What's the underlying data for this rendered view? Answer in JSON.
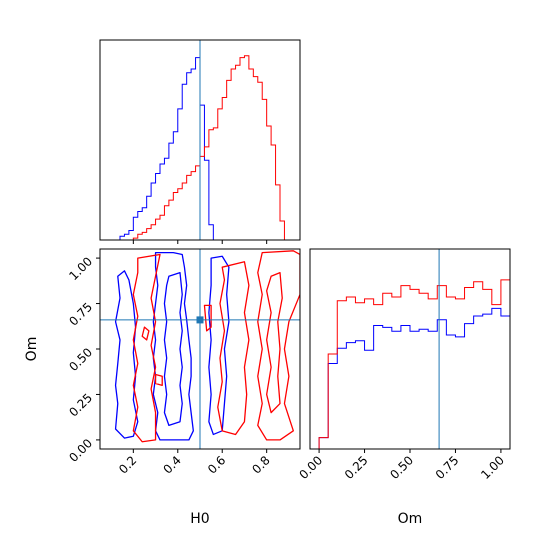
{
  "chart_data": [
    {
      "id": "h0_hist",
      "type": "histogram",
      "panel": "top-left",
      "xlim": [
        0.05,
        0.95
      ],
      "ylim": [
        0,
        1
      ],
      "bin_start": 0.1,
      "bin_width": 0.02,
      "truth_x": 0.5,
      "show_x_ticklabels": false,
      "show_y_ticks": false,
      "series": [
        {
          "color": "#0000ff",
          "values": [
            0,
            0,
            0.02,
            0.03,
            0.05,
            0.12,
            0.15,
            0.17,
            0.23,
            0.3,
            0.35,
            0.4,
            0.43,
            0.51,
            0.57,
            0.69,
            0.82,
            0.88,
            0.9,
            0.96,
            0.71,
            0.42,
            0.08,
            0,
            0,
            0,
            0,
            0,
            0,
            0,
            0,
            0,
            0,
            0,
            0,
            0,
            0,
            0,
            0,
            0,
            0,
            0,
            0,
            0,
            0,
            0
          ]
        },
        {
          "color": "#ff0000",
          "values": [
            0,
            0,
            0,
            0,
            0,
            0.01,
            0.03,
            0.04,
            0.06,
            0.08,
            0.11,
            0.13,
            0.18,
            0.21,
            0.25,
            0.27,
            0.3,
            0.34,
            0.36,
            0.39,
            0.44,
            0.49,
            0.58,
            0.59,
            0.69,
            0.75,
            0.84,
            0.9,
            0.92,
            0.96,
            0.97,
            0.9,
            0.86,
            0.83,
            0.74,
            0.6,
            0.5,
            0.29,
            0.1,
            0,
            0,
            0,
            0,
            0,
            0,
            0
          ]
        }
      ]
    },
    {
      "id": "h0_om_contour",
      "type": "contour",
      "panel": "bottom-left",
      "xlabel": "H0",
      "ylabel": "Om",
      "xlim": [
        0.05,
        0.95
      ],
      "ylim": [
        -0.05,
        1.05
      ],
      "xticks": [
        "0.2",
        "0.4",
        "0.6",
        "0.8"
      ],
      "yticks": [
        "0.00",
        "0.25",
        "0.50",
        "0.75",
        "1.00"
      ],
      "xtick_values": [
        0.2,
        0.4,
        0.6,
        0.8
      ],
      "ytick_values": [
        0,
        0.25,
        0.5,
        0.75,
        1.0
      ],
      "truth": [
        0.5,
        0.66
      ],
      "contours": [
        {
          "color": "#0000ff",
          "points": [
            [
              0.3,
              1.03
            ],
            [
              0.38,
              1.03
            ],
            [
              0.42,
              1.02
            ],
            [
              0.43,
              0.95
            ],
            [
              0.44,
              0.85
            ],
            [
              0.43,
              0.75
            ],
            [
              0.44,
              0.66
            ],
            [
              0.45,
              0.55
            ],
            [
              0.46,
              0.45
            ],
            [
              0.46,
              0.35
            ],
            [
              0.45,
              0.25
            ],
            [
              0.46,
              0.15
            ],
            [
              0.47,
              0.05
            ],
            [
              0.45,
              0.0
            ],
            [
              0.4,
              0.0
            ],
            [
              0.32,
              0.0
            ],
            [
              0.3,
              0.05
            ],
            [
              0.31,
              0.15
            ],
            [
              0.29,
              0.25
            ],
            [
              0.3,
              0.35
            ],
            [
              0.29,
              0.45
            ],
            [
              0.3,
              0.55
            ],
            [
              0.29,
              0.65
            ],
            [
              0.3,
              0.75
            ],
            [
              0.31,
              0.85
            ],
            [
              0.3,
              0.95
            ]
          ]
        },
        {
          "color": "#0000ff",
          "points": [
            [
              0.36,
              0.9
            ],
            [
              0.41,
              0.92
            ],
            [
              0.42,
              0.8
            ],
            [
              0.41,
              0.7
            ],
            [
              0.42,
              0.6
            ],
            [
              0.41,
              0.5
            ],
            [
              0.42,
              0.4
            ],
            [
              0.41,
              0.3
            ],
            [
              0.42,
              0.2
            ],
            [
              0.41,
              0.1
            ],
            [
              0.36,
              0.08
            ],
            [
              0.34,
              0.15
            ],
            [
              0.35,
              0.25
            ],
            [
              0.34,
              0.35
            ],
            [
              0.35,
              0.45
            ],
            [
              0.34,
              0.55
            ],
            [
              0.35,
              0.65
            ],
            [
              0.34,
              0.75
            ],
            [
              0.35,
              0.85
            ]
          ]
        },
        {
          "color": "#0000ff",
          "points": [
            [
              0.13,
              0.9
            ],
            [
              0.14,
              0.78
            ],
            [
              0.12,
              0.65
            ],
            [
              0.14,
              0.55
            ],
            [
              0.13,
              0.42
            ],
            [
              0.12,
              0.3
            ],
            [
              0.13,
              0.2
            ],
            [
              0.12,
              0.06
            ],
            [
              0.16,
              0.01
            ],
            [
              0.2,
              0.02
            ],
            [
              0.22,
              0.1
            ],
            [
              0.2,
              0.22
            ],
            [
              0.21,
              0.35
            ],
            [
              0.2,
              0.48
            ],
            [
              0.21,
              0.62
            ],
            [
              0.2,
              0.75
            ],
            [
              0.18,
              0.88
            ],
            [
              0.16,
              0.93
            ]
          ]
        },
        {
          "color": "#0000ff",
          "points": [
            [
              0.55,
              1.0
            ],
            [
              0.6,
              1.01
            ],
            [
              0.63,
              0.95
            ],
            [
              0.62,
              0.8
            ],
            [
              0.63,
              0.65
            ],
            [
              0.61,
              0.5
            ],
            [
              0.62,
              0.35
            ],
            [
              0.61,
              0.2
            ],
            [
              0.6,
              0.05
            ],
            [
              0.56,
              0.03
            ],
            [
              0.54,
              0.1
            ],
            [
              0.55,
              0.25
            ],
            [
              0.54,
              0.4
            ],
            [
              0.55,
              0.55
            ],
            [
              0.54,
              0.7
            ],
            [
              0.55,
              0.85
            ]
          ]
        },
        {
          "color": "#ff0000",
          "points": [
            [
              0.6,
              0.95
            ],
            [
              0.7,
              0.98
            ],
            [
              0.72,
              0.85
            ],
            [
              0.7,
              0.7
            ],
            [
              0.72,
              0.55
            ],
            [
              0.7,
              0.4
            ],
            [
              0.71,
              0.25
            ],
            [
              0.7,
              0.1
            ],
            [
              0.66,
              0.03
            ],
            [
              0.6,
              0.05
            ],
            [
              0.58,
              0.18
            ],
            [
              0.6,
              0.32
            ],
            [
              0.59,
              0.45
            ],
            [
              0.61,
              0.6
            ],
            [
              0.59,
              0.75
            ],
            [
              0.61,
              0.88
            ]
          ]
        },
        {
          "color": "#ff0000",
          "points": [
            [
              0.78,
              1.03
            ],
            [
              0.92,
              1.04
            ],
            [
              0.95,
              1.02
            ],
            [
              0.95,
              0.8
            ],
            [
              0.9,
              0.65
            ],
            [
              0.88,
              0.5
            ],
            [
              0.9,
              0.35
            ],
            [
              0.88,
              0.2
            ],
            [
              0.92,
              0.05
            ],
            [
              0.86,
              0.0
            ],
            [
              0.8,
              0.0
            ],
            [
              0.76,
              0.08
            ],
            [
              0.78,
              0.2
            ],
            [
              0.76,
              0.35
            ],
            [
              0.78,
              0.5
            ],
            [
              0.76,
              0.65
            ],
            [
              0.78,
              0.8
            ],
            [
              0.76,
              0.92
            ]
          ]
        },
        {
          "color": "#ff0000",
          "points": [
            [
              0.82,
              0.9
            ],
            [
              0.86,
              0.92
            ],
            [
              0.87,
              0.78
            ],
            [
              0.85,
              0.65
            ],
            [
              0.86,
              0.5
            ],
            [
              0.85,
              0.35
            ],
            [
              0.86,
              0.2
            ],
            [
              0.82,
              0.15
            ],
            [
              0.8,
              0.25
            ],
            [
              0.82,
              0.4
            ],
            [
              0.8,
              0.55
            ],
            [
              0.82,
              0.7
            ],
            [
              0.8,
              0.82
            ]
          ]
        },
        {
          "color": "#ff0000",
          "points": [
            [
              0.22,
              1.0
            ],
            [
              0.32,
              1.02
            ],
            [
              0.3,
              0.9
            ],
            [
              0.28,
              0.78
            ],
            [
              0.3,
              0.65
            ],
            [
              0.28,
              0.52
            ],
            [
              0.3,
              0.4
            ],
            [
              0.28,
              0.28
            ],
            [
              0.3,
              0.15
            ],
            [
              0.3,
              0.0
            ],
            [
              0.24,
              -0.01
            ],
            [
              0.2,
              0.05
            ],
            [
              0.22,
              0.18
            ],
            [
              0.2,
              0.3
            ],
            [
              0.22,
              0.42
            ],
            [
              0.2,
              0.55
            ],
            [
              0.22,
              0.68
            ],
            [
              0.2,
              0.8
            ],
            [
              0.22,
              0.92
            ]
          ]
        },
        {
          "color": "#ff0000",
          "points": [
            [
              0.25,
              0.62
            ],
            [
              0.27,
              0.6
            ],
            [
              0.26,
              0.55
            ],
            [
              0.24,
              0.57
            ]
          ]
        },
        {
          "color": "#ff0000",
          "points": [
            [
              0.52,
              0.74
            ],
            [
              0.55,
              0.74
            ],
            [
              0.55,
              0.62
            ],
            [
              0.53,
              0.6
            ]
          ]
        },
        {
          "color": "#ff0000",
          "points": [
            [
              0.3,
              0.36
            ],
            [
              0.33,
              0.35
            ],
            [
              0.33,
              0.3
            ],
            [
              0.3,
              0.31
            ]
          ]
        }
      ]
    },
    {
      "id": "om_hist",
      "type": "histogram",
      "panel": "bottom-right",
      "xlabel": "Om",
      "xlim": [
        -0.05,
        1.05
      ],
      "ylim": [
        0,
        1
      ],
      "bin_start": 0.0,
      "bin_width": 0.05,
      "truth_x": 0.66,
      "xticks": [
        "0.00",
        "0.25",
        "0.50",
        "0.75",
        "1.00"
      ],
      "xtick_values": [
        0,
        0.25,
        0.5,
        0.75,
        1.0
      ],
      "show_y_ticks": false,
      "series": [
        {
          "color": "#0000ff",
          "values": [
            0.06,
            0.45,
            0.53,
            0.56,
            0.57,
            0.52,
            0.65,
            0.64,
            0.62,
            0.65,
            0.62,
            0.63,
            0.62,
            0.68,
            0.6,
            0.59,
            0.66,
            0.7,
            0.71,
            0.74,
            0.7,
            0.06
          ]
        },
        {
          "color": "#ff0000",
          "values": [
            0.06,
            0.5,
            0.78,
            0.8,
            0.77,
            0.79,
            0.76,
            0.82,
            0.8,
            0.86,
            0.84,
            0.82,
            0.79,
            0.86,
            0.8,
            0.79,
            0.85,
            0.88,
            0.84,
            0.76,
            0.89,
            0.04
          ]
        }
      ]
    }
  ]
}
